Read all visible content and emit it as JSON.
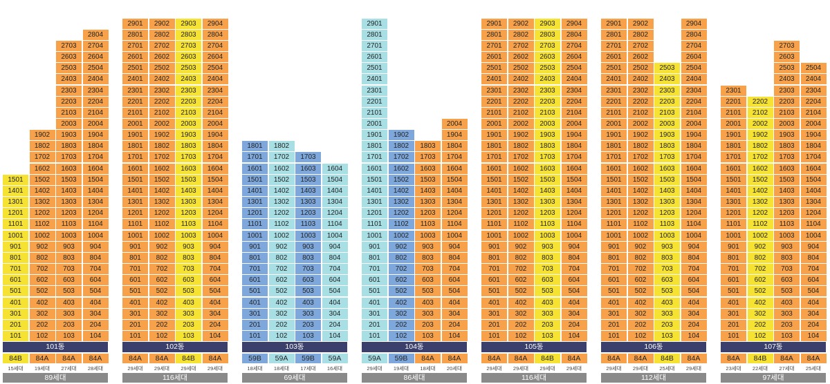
{
  "colors": {
    "84A": "#f7a24a",
    "84B": "#f6e233",
    "59A": "#a7dfe5",
    "59B": "#7ea8dc",
    "building_bar": "#3b3f6b",
    "total_bar": "#8a8a8a"
  },
  "buildings": [
    {
      "name": "101동",
      "total": "89세대",
      "lines": [
        {
          "type": "84B",
          "count": "15세대",
          "floors": 15
        },
        {
          "type": "84A",
          "count": "19세대",
          "floors": 19
        },
        {
          "type": "84A",
          "count": "27세대",
          "floors": 27
        },
        {
          "type": "84A",
          "count": "28세대",
          "floors": 28
        }
      ]
    },
    {
      "name": "102동",
      "total": "116세대",
      "lines": [
        {
          "type": "84A",
          "count": "29세대",
          "floors": 29
        },
        {
          "type": "84A",
          "count": "29세대",
          "floors": 29
        },
        {
          "type": "84B",
          "count": "29세대",
          "floors": 29
        },
        {
          "type": "84A",
          "count": "29세대",
          "floors": 29
        }
      ]
    },
    {
      "name": "103동",
      "total": "69세대",
      "lines": [
        {
          "type": "59B",
          "count": "18세대",
          "floors": 18
        },
        {
          "type": "59A",
          "count": "18세대",
          "floors": 18
        },
        {
          "type": "59B",
          "count": "17세대",
          "floors": 17
        },
        {
          "type": "59A",
          "count": "16세대",
          "floors": 16
        }
      ]
    },
    {
      "name": "104동",
      "total": "86세대",
      "lines": [
        {
          "type": "59A",
          "count": "29세대",
          "floors": 29
        },
        {
          "type": "59B",
          "count": "19세대",
          "floors": 19
        },
        {
          "type": "84A",
          "count": "18세대",
          "floors": 18
        },
        {
          "type": "84A",
          "count": "20세대",
          "floors": 20
        }
      ]
    },
    {
      "name": "105동",
      "total": "116세대",
      "lines": [
        {
          "type": "84A",
          "count": "29세대",
          "floors": 29
        },
        {
          "type": "84A",
          "count": "29세대",
          "floors": 29
        },
        {
          "type": "84B",
          "count": "29세대",
          "floors": 29
        },
        {
          "type": "84A",
          "count": "29세대",
          "floors": 29
        }
      ]
    },
    {
      "name": "106동",
      "total": "112세대",
      "lines": [
        {
          "type": "84A",
          "count": "29세대",
          "floors": 29
        },
        {
          "type": "84A",
          "count": "29세대",
          "floors": 29
        },
        {
          "type": "84B",
          "count": "25세대",
          "floors": 25
        },
        {
          "type": "84A",
          "count": "29세대",
          "floors": 29
        }
      ]
    },
    {
      "name": "107동",
      "total": "97세대",
      "lines": [
        {
          "type": "84A",
          "count": "23세대",
          "floors": 23
        },
        {
          "type": "84B",
          "count": "22세대",
          "floors": 22
        },
        {
          "type": "84A",
          "count": "27세대",
          "floors": 27
        },
        {
          "type": "84A",
          "count": "25세대",
          "floors": 25
        }
      ]
    }
  ]
}
